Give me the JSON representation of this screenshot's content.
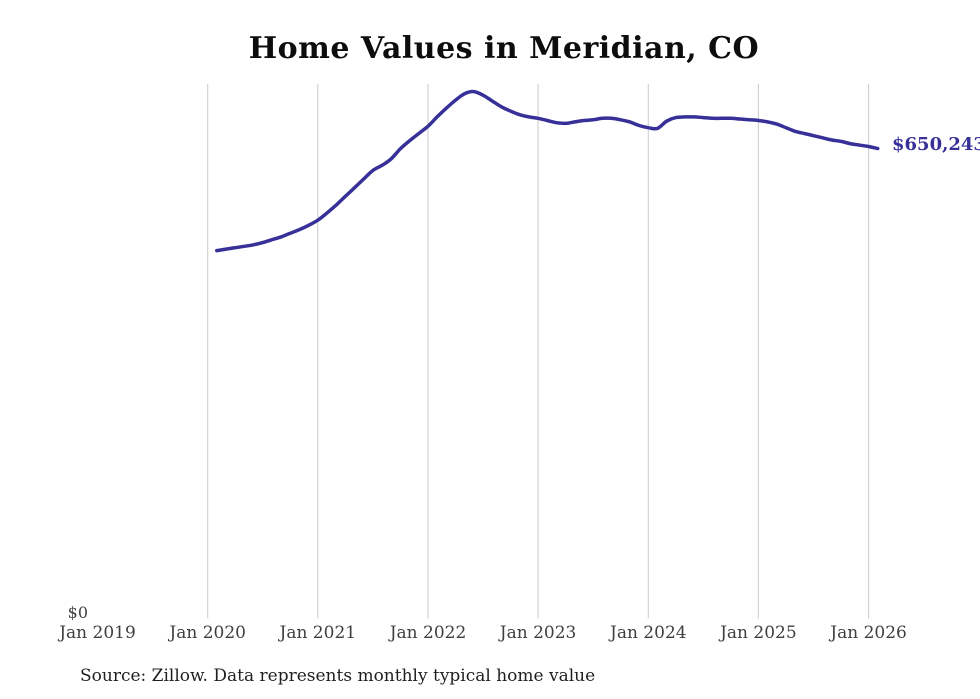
{
  "page": {
    "background": "#ffffff"
  },
  "chart_data": {
    "type": "line",
    "title": "Home Values in Meridian, CO",
    "source": "Source: Zillow. Data represents monthly typical home value",
    "x_tick_labels": [
      "Jan 2019",
      "Jan 2020",
      "Jan 2021",
      "Jan 2022",
      "Jan 2023",
      "Jan 2024",
      "Jan 2025",
      "Jan 2026"
    ],
    "x_axis": {
      "range_start": "Jan 2019",
      "range_end": "Jan 2026",
      "gridlines": "vertical"
    },
    "y_axis": {
      "zero_label": "$0",
      "min": 0,
      "gridlines": "none"
    },
    "legend": "none",
    "line_color": "#363098",
    "grid_color": "#cbcbcb",
    "series": [
      {
        "name": "Monthly typical home value",
        "unit": "USD",
        "latest_label": "$650,243",
        "latest_value": 650243,
        "points": [
          {
            "d": "2020-02",
            "v": 509000
          },
          {
            "d": "2020-03",
            "v": 511000
          },
          {
            "d": "2020-04",
            "v": 513000
          },
          {
            "d": "2020-05",
            "v": 515000
          },
          {
            "d": "2020-06",
            "v": 517000
          },
          {
            "d": "2020-07",
            "v": 520000
          },
          {
            "d": "2020-08",
            "v": 524000
          },
          {
            "d": "2020-09",
            "v": 528000
          },
          {
            "d": "2020-10",
            "v": 533000
          },
          {
            "d": "2020-11",
            "v": 538000
          },
          {
            "d": "2020-12",
            "v": 544000
          },
          {
            "d": "2021-01",
            "v": 551000
          },
          {
            "d": "2021-02",
            "v": 561000
          },
          {
            "d": "2021-03",
            "v": 572000
          },
          {
            "d": "2021-04",
            "v": 584000
          },
          {
            "d": "2021-05",
            "v": 596000
          },
          {
            "d": "2021-06",
            "v": 608000
          },
          {
            "d": "2021-07",
            "v": 620000
          },
          {
            "d": "2021-08",
            "v": 627000
          },
          {
            "d": "2021-09",
            "v": 636000
          },
          {
            "d": "2021-10",
            "v": 650000
          },
          {
            "d": "2021-11",
            "v": 661000
          },
          {
            "d": "2021-12",
            "v": 671000
          },
          {
            "d": "2022-01",
            "v": 681000
          },
          {
            "d": "2022-02",
            "v": 694000
          },
          {
            "d": "2022-03",
            "v": 706000
          },
          {
            "d": "2022-04",
            "v": 717000
          },
          {
            "d": "2022-05",
            "v": 726000
          },
          {
            "d": "2022-06",
            "v": 729000
          },
          {
            "d": "2022-07",
            "v": 724000
          },
          {
            "d": "2022-08",
            "v": 716000
          },
          {
            "d": "2022-09",
            "v": 708000
          },
          {
            "d": "2022-10",
            "v": 702000
          },
          {
            "d": "2022-11",
            "v": 697000
          },
          {
            "d": "2022-12",
            "v": 694000
          },
          {
            "d": "2023-01",
            "v": 692000
          },
          {
            "d": "2023-02",
            "v": 689000
          },
          {
            "d": "2023-03",
            "v": 686000
          },
          {
            "d": "2023-04",
            "v": 685000
          },
          {
            "d": "2023-05",
            "v": 687000
          },
          {
            "d": "2023-06",
            "v": 689000
          },
          {
            "d": "2023-07",
            "v": 690000
          },
          {
            "d": "2023-08",
            "v": 692000
          },
          {
            "d": "2023-09",
            "v": 692000
          },
          {
            "d": "2023-10",
            "v": 690000
          },
          {
            "d": "2023-11",
            "v": 687000
          },
          {
            "d": "2023-12",
            "v": 682000
          },
          {
            "d": "2024-01",
            "v": 679000
          },
          {
            "d": "2024-02",
            "v": 678000
          },
          {
            "d": "2024-03",
            "v": 688000
          },
          {
            "d": "2024-04",
            "v": 693000
          },
          {
            "d": "2024-05",
            "v": 694000
          },
          {
            "d": "2024-06",
            "v": 694000
          },
          {
            "d": "2024-07",
            "v": 693000
          },
          {
            "d": "2024-08",
            "v": 692000
          },
          {
            "d": "2024-09",
            "v": 692000
          },
          {
            "d": "2024-10",
            "v": 692000
          },
          {
            "d": "2024-11",
            "v": 691000
          },
          {
            "d": "2024-12",
            "v": 690000
          },
          {
            "d": "2025-01",
            "v": 689000
          },
          {
            "d": "2025-02",
            "v": 687000
          },
          {
            "d": "2025-03",
            "v": 684000
          },
          {
            "d": "2025-04",
            "v": 679000
          },
          {
            "d": "2025-05",
            "v": 674000
          },
          {
            "d": "2025-06",
            "v": 671000
          },
          {
            "d": "2025-07",
            "v": 668000
          },
          {
            "d": "2025-08",
            "v": 665000
          },
          {
            "d": "2025-09",
            "v": 662000
          },
          {
            "d": "2025-10",
            "v": 660000
          },
          {
            "d": "2025-11",
            "v": 657000
          },
          {
            "d": "2025-12",
            "v": 655000
          },
          {
            "d": "2026-01",
            "v": 653000
          },
          {
            "d": "2026-02",
            "v": 650243
          }
        ]
      }
    ]
  }
}
